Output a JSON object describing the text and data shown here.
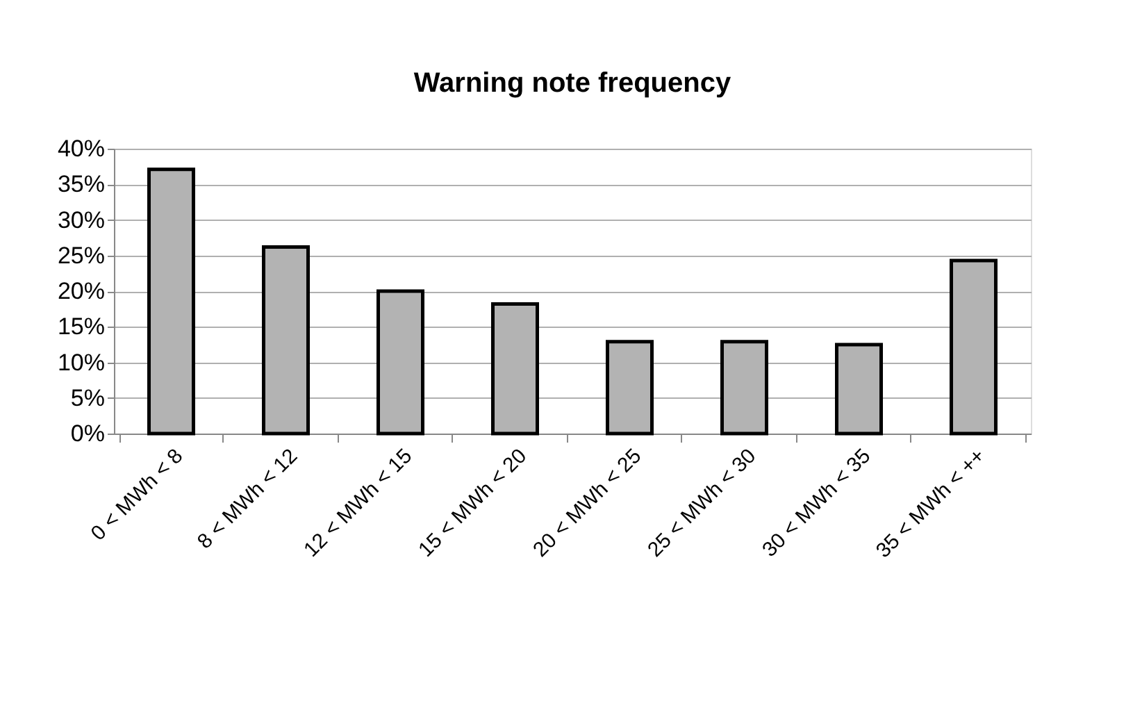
{
  "chart_data": {
    "type": "bar",
    "title": "Warning note frequency",
    "categories": [
      "0 < MWh < 8",
      "8 < MWh < 12",
      "12 < MWh < 15",
      "15 < MWh < 20",
      "20 < MWh < 25",
      "25 < MWh < 30",
      "30 < MWh < 35",
      "35 < MWh < ++"
    ],
    "values": [
      37.1,
      26.2,
      20.0,
      18.2,
      12.9,
      12.9,
      12.5,
      24.3
    ],
    "color": "#b3b3b3",
    "ylim": [
      0,
      40
    ],
    "yticks": [
      {
        "value": 0,
        "label": "0%"
      },
      {
        "value": 5,
        "label": "5%"
      },
      {
        "value": 10,
        "label": "10%"
      },
      {
        "value": 15,
        "label": "15%"
      },
      {
        "value": 20,
        "label": "20%"
      },
      {
        "value": 25,
        "label": "25%"
      },
      {
        "value": 30,
        "label": "30%"
      },
      {
        "value": 35,
        "label": "35%"
      },
      {
        "value": 40,
        "label": "40%"
      }
    ],
    "grid": "y"
  }
}
